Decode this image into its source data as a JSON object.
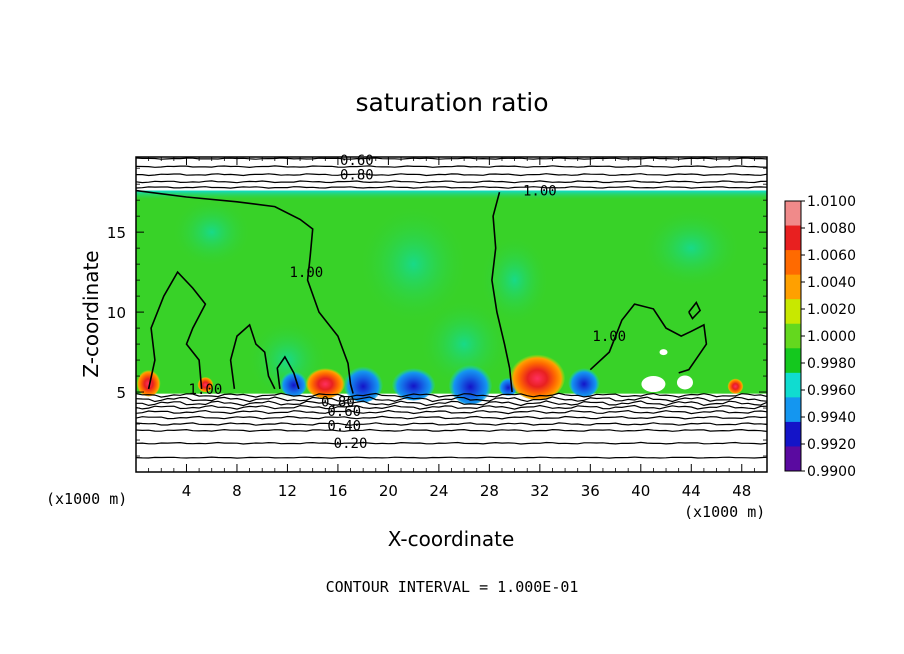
{
  "chart_data": {
    "type": "heatmap",
    "title": "saturation ratio",
    "xlabel": "X-coordinate",
    "ylabel": "Z-coordinate",
    "x_unit": "(x1000 m)",
    "footer": "CONTOUR INTERVAL = 1.000E-01",
    "xlim": [
      0,
      50
    ],
    "ylim": [
      0,
      19.7
    ],
    "x_ticks": [
      4,
      8,
      12,
      16,
      20,
      24,
      28,
      32,
      36,
      40,
      44,
      48
    ],
    "y_ticks": [
      5,
      10,
      15
    ],
    "grid": false,
    "colorbar": {
      "placement": "right",
      "levels": [
        "1.0100",
        "1.0080",
        "1.0060",
        "1.0040",
        "1.0020",
        "1.0000",
        "0.9980",
        "0.9960",
        "0.9940",
        "0.9920",
        "0.9900"
      ],
      "colors": [
        "#f08a8a",
        "#e82020",
        "#ff6a00",
        "#ffa000",
        "#c8e800",
        "#64d81e",
        "#14c81e",
        "#10dcd0",
        "#1496f0",
        "#1414c8",
        "#5a0aa0"
      ]
    },
    "contour_labels": [
      {
        "text": "0.60",
        "x": 17.5,
        "y": 19.5
      },
      {
        "text": "0.80",
        "x": 17.5,
        "y": 18.6
      },
      {
        "text": "1.00",
        "x": 32,
        "y": 17.6
      },
      {
        "text": "1.00",
        "x": 13.5,
        "y": 12.5
      },
      {
        "text": "1.00",
        "x": 37.5,
        "y": 8.5
      },
      {
        "text": "1.00",
        "x": 5.5,
        "y": 5.2
      },
      {
        "text": "0.80",
        "x": 16,
        "y": 4.4
      },
      {
        "text": "0.60",
        "x": 16.5,
        "y": 3.8
      },
      {
        "text": "0.40",
        "x": 16.5,
        "y": 2.9
      },
      {
        "text": "0.20",
        "x": 17,
        "y": 1.8
      }
    ],
    "colors": {
      "field": "#38d228",
      "field_light": "#78de46",
      "dry_low": "#1496f0",
      "dry_core": "#1414c8",
      "moist": "#e82020",
      "moist_mid": "#ff6a00",
      "moist_edge": "#ffa000"
    }
  }
}
